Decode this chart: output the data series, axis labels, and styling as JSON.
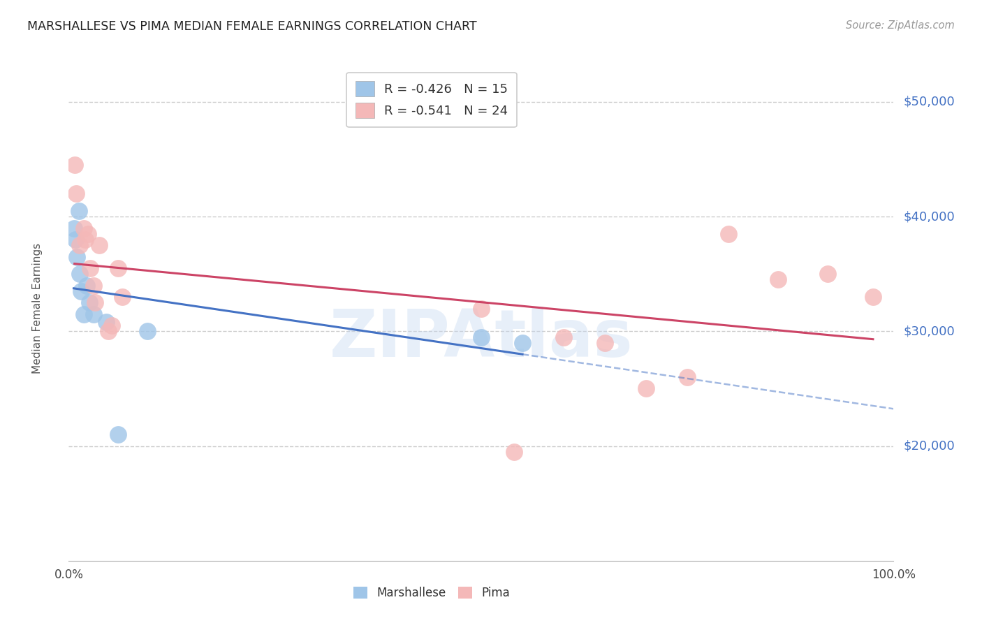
{
  "title": "MARSHALLESE VS PIMA MEDIAN FEMALE EARNINGS CORRELATION CHART",
  "source": "Source: ZipAtlas.com",
  "ylabel": "Median Female Earnings",
  "y_tick_labels": [
    "$20,000",
    "$30,000",
    "$40,000",
    "$50,000"
  ],
  "y_tick_values": [
    20000,
    30000,
    40000,
    50000
  ],
  "y_min": 10000,
  "y_max": 54000,
  "x_min": 0.0,
  "x_max": 1.0,
  "marshallese_R": "-0.426",
  "marshallese_N": "15",
  "pima_R": "-0.541",
  "pima_N": "24",
  "marshallese_color": "#9fc5e8",
  "pima_color": "#f4b8b8",
  "marshallese_line_color": "#4472c4",
  "pima_line_color": "#cc4466",
  "watermark": "ZIPAtlas",
  "marshallese_x": [
    0.006,
    0.008,
    0.01,
    0.012,
    0.013,
    0.015,
    0.018,
    0.022,
    0.025,
    0.03,
    0.045,
    0.06,
    0.095,
    0.5,
    0.55
  ],
  "marshallese_y": [
    39000,
    38000,
    36500,
    40500,
    35000,
    33500,
    31500,
    34000,
    32500,
    31500,
    30800,
    21000,
    30000,
    29500,
    29000
  ],
  "pima_x": [
    0.007,
    0.009,
    0.013,
    0.018,
    0.02,
    0.023,
    0.026,
    0.03,
    0.032,
    0.037,
    0.048,
    0.052,
    0.06,
    0.065,
    0.5,
    0.54,
    0.6,
    0.65,
    0.7,
    0.75,
    0.8,
    0.86,
    0.92,
    0.975
  ],
  "pima_y": [
    44500,
    42000,
    37500,
    39000,
    38000,
    38500,
    35500,
    34000,
    32500,
    37500,
    30000,
    30500,
    35500,
    33000,
    32000,
    19500,
    29500,
    29000,
    25000,
    26000,
    38500,
    34500,
    35000,
    33000
  ],
  "background_color": "#ffffff",
  "grid_color": "#cccccc",
  "legend_box_color": "#ffffff",
  "legend_border_color": "#cccccc"
}
